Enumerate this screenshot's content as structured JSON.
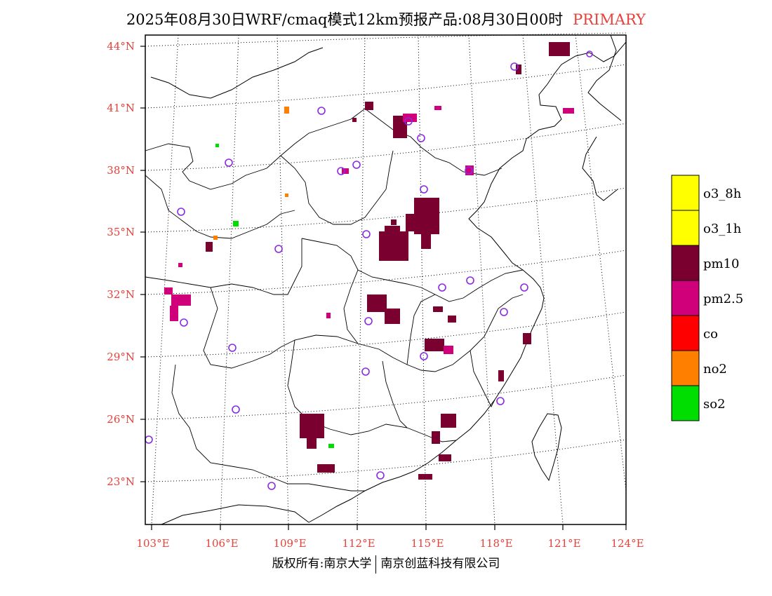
{
  "header": {
    "title": "2025年08月30日WRF/cmaq模式12km预报产品:08月30日00时",
    "tag": "PRIMARY"
  },
  "map": {
    "lat_labels": [
      "44°N",
      "41°N",
      "38°N",
      "35°N",
      "32°N",
      "29°N",
      "26°N",
      "23°N"
    ],
    "lon_labels": [
      "103°E",
      "106°E",
      "109°E",
      "112°E",
      "115°E",
      "118°E",
      "121°E",
      "124°E"
    ],
    "extent": {
      "lon": [
        102.7,
        124
      ],
      "lat": [
        21.0,
        44.6
      ]
    },
    "pollutant_colors": {
      "o3_8h": "#ffff00",
      "o3_1h": "#ffff00",
      "pm10": "#7a0030",
      "pm2.5": "#d0007a",
      "co": "#ff0000",
      "no2": "#ff7f00",
      "so2": "#00dd00"
    }
  },
  "legend": {
    "items": [
      {
        "label": "o3_8h",
        "color": "#ffff00"
      },
      {
        "label": "o3_1h",
        "color": "#ffff00"
      },
      {
        "label": "pm10",
        "color": "#7a0030"
      },
      {
        "label": "pm2.5",
        "color": "#d0007a"
      },
      {
        "label": "co",
        "color": "#ff0000"
      },
      {
        "label": "no2",
        "color": "#ff7f00"
      },
      {
        "label": "so2",
        "color": "#00dd00"
      }
    ]
  },
  "footer": {
    "left": "版权所有:南京大学",
    "right": "南京创蓝科技有限公司"
  }
}
